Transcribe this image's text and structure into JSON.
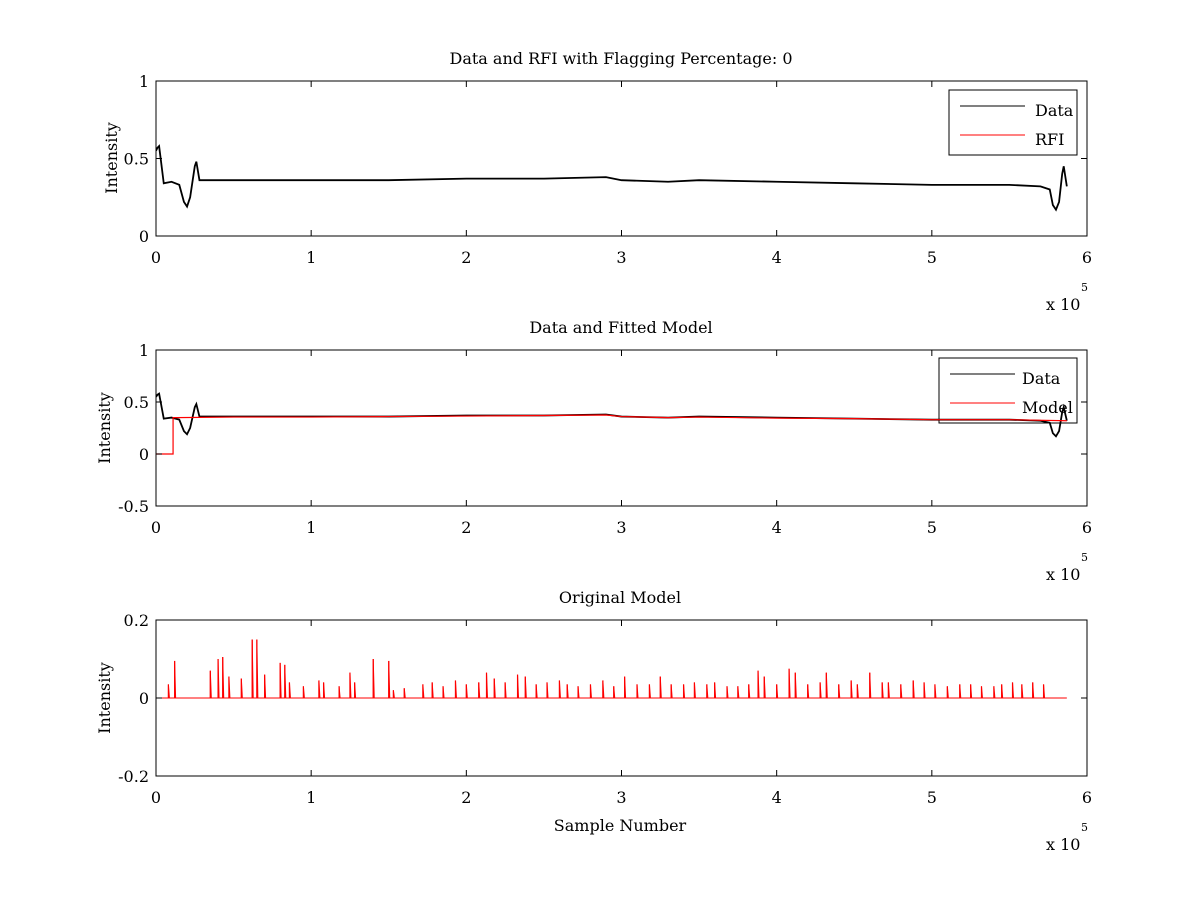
{
  "chart_data": [
    {
      "type": "line",
      "title": "Data and RFI with Flagging Percentage: 0",
      "xlabel": "",
      "ylabel": "Intensity",
      "xlim": [
        0,
        6
      ],
      "ylim": [
        0,
        1
      ],
      "x_multiplier": "x 10",
      "x_multiplier_exp": "5",
      "xticks": [
        "0",
        "1",
        "2",
        "3",
        "4",
        "5",
        "6"
      ],
      "yticks": [
        "0",
        "0.5",
        "1"
      ],
      "legend_position": "top-right",
      "legend": [
        "Data",
        "RFI"
      ],
      "series": [
        {
          "name": "Data",
          "color": "#000000",
          "x": [
            0,
            0.01,
            0.02,
            0.03,
            0.05,
            0.1,
            0.15,
            0.18,
            0.2,
            0.22,
            0.25,
            0.26,
            0.28,
            0.5,
            1.0,
            1.5,
            2.0,
            2.5,
            2.9,
            3.0,
            3.3,
            3.5,
            4.0,
            4.5,
            5.0,
            5.5,
            5.7,
            5.76,
            5.78,
            5.8,
            5.82,
            5.84,
            5.85,
            5.87
          ],
          "y": [
            0.55,
            0.57,
            0.58,
            0.5,
            0.34,
            0.35,
            0.33,
            0.22,
            0.19,
            0.25,
            0.45,
            0.48,
            0.36,
            0.36,
            0.36,
            0.36,
            0.37,
            0.37,
            0.38,
            0.36,
            0.35,
            0.36,
            0.35,
            0.34,
            0.33,
            0.33,
            0.32,
            0.3,
            0.2,
            0.17,
            0.22,
            0.4,
            0.45,
            0.32
          ]
        },
        {
          "name": "RFI",
          "color": "#ff0000",
          "x": [],
          "y": []
        }
      ]
    },
    {
      "type": "line",
      "title": "Data and Fitted Model",
      "xlabel": "",
      "ylabel": "Intensity",
      "xlim": [
        0,
        6
      ],
      "ylim": [
        -0.5,
        1
      ],
      "x_multiplier": "x 10",
      "x_multiplier_exp": "5",
      "xticks": [
        "0",
        "1",
        "2",
        "3",
        "4",
        "5",
        "6"
      ],
      "yticks": [
        "-0.5",
        "0",
        "0.5",
        "1"
      ],
      "legend_position": "top-right",
      "legend": [
        "Data",
        "Model"
      ],
      "series": [
        {
          "name": "Data",
          "color": "#000000",
          "x": [
            0,
            0.01,
            0.02,
            0.03,
            0.05,
            0.1,
            0.15,
            0.18,
            0.2,
            0.22,
            0.25,
            0.26,
            0.28,
            0.5,
            1.0,
            1.5,
            2.0,
            2.5,
            2.9,
            3.0,
            3.3,
            3.5,
            4.0,
            4.5,
            5.0,
            5.5,
            5.7,
            5.76,
            5.78,
            5.8,
            5.82,
            5.84,
            5.85,
            5.87
          ],
          "y": [
            0.55,
            0.57,
            0.58,
            0.5,
            0.34,
            0.35,
            0.33,
            0.22,
            0.19,
            0.25,
            0.45,
            0.48,
            0.36,
            0.36,
            0.36,
            0.36,
            0.37,
            0.37,
            0.38,
            0.36,
            0.35,
            0.36,
            0.35,
            0.34,
            0.33,
            0.33,
            0.32,
            0.3,
            0.2,
            0.17,
            0.22,
            0.4,
            0.45,
            0.32
          ]
        },
        {
          "name": "Model",
          "color": "#ff0000",
          "x": [
            0,
            0.11,
            0.11,
            0.13,
            0.5,
            1.0,
            1.5,
            2.0,
            2.5,
            2.9,
            3.0,
            3.3,
            3.5,
            4.0,
            4.5,
            5.0,
            5.5,
            5.87
          ],
          "y": [
            0.0,
            0.0,
            0.35,
            0.35,
            0.355,
            0.355,
            0.36,
            0.365,
            0.37,
            0.375,
            0.36,
            0.35,
            0.355,
            0.345,
            0.34,
            0.33,
            0.33,
            0.32
          ]
        }
      ]
    },
    {
      "type": "line",
      "title": "Original Model",
      "xlabel": "Sample Number",
      "ylabel": "Intensity",
      "xlim": [
        0,
        6
      ],
      "ylim": [
        -0.2,
        0.2
      ],
      "x_multiplier": "x 10",
      "x_multiplier_exp": "5",
      "xticks": [
        "0",
        "1",
        "2",
        "3",
        "4",
        "5",
        "6"
      ],
      "yticks": [
        "-0.2",
        "0",
        "0.2"
      ],
      "series": [
        {
          "color": "#ff0000",
          "baseline": 0,
          "x_end": 5.87,
          "spikes_x": [
            0.08,
            0.12,
            0.35,
            0.4,
            0.43,
            0.47,
            0.55,
            0.62,
            0.65,
            0.7,
            0.8,
            0.83,
            0.86,
            0.95,
            1.05,
            1.08,
            1.18,
            1.25,
            1.28,
            1.4,
            1.5,
            1.53,
            1.6,
            1.72,
            1.78,
            1.85,
            1.93,
            2.0,
            2.08,
            2.13,
            2.18,
            2.25,
            2.33,
            2.38,
            2.45,
            2.52,
            2.6,
            2.65,
            2.72,
            2.8,
            2.88,
            2.95,
            3.02,
            3.1,
            3.18,
            3.25,
            3.32,
            3.4,
            3.47,
            3.55,
            3.6,
            3.68,
            3.75,
            3.82,
            3.88,
            3.92,
            4.0,
            4.08,
            4.12,
            4.2,
            4.28,
            4.32,
            4.4,
            4.48,
            4.52,
            4.6,
            4.68,
            4.72,
            4.8,
            4.88,
            4.95,
            5.02,
            5.1,
            5.18,
            5.25,
            5.32,
            5.4,
            5.45,
            5.52,
            5.58,
            5.65,
            5.72
          ],
          "spikes_y": [
            0.035,
            0.095,
            0.07,
            0.1,
            0.105,
            0.055,
            0.05,
            0.15,
            0.15,
            0.06,
            0.09,
            0.085,
            0.04,
            0.03,
            0.045,
            0.04,
            0.03,
            0.065,
            0.04,
            0.1,
            0.095,
            0.02,
            0.025,
            0.035,
            0.04,
            0.03,
            0.045,
            0.035,
            0.04,
            0.065,
            0.05,
            0.04,
            0.06,
            0.055,
            0.035,
            0.04,
            0.045,
            0.035,
            0.03,
            0.035,
            0.045,
            0.03,
            0.055,
            0.035,
            0.035,
            0.055,
            0.035,
            0.035,
            0.04,
            0.035,
            0.04,
            0.03,
            0.03,
            0.035,
            0.07,
            0.055,
            0.035,
            0.075,
            0.065,
            0.035,
            0.04,
            0.065,
            0.035,
            0.045,
            0.035,
            0.065,
            0.04,
            0.04,
            0.035,
            0.045,
            0.04,
            0.035,
            0.03,
            0.035,
            0.035,
            0.03,
            0.03,
            0.035,
            0.04,
            0.035,
            0.04,
            0.035
          ]
        }
      ]
    }
  ]
}
